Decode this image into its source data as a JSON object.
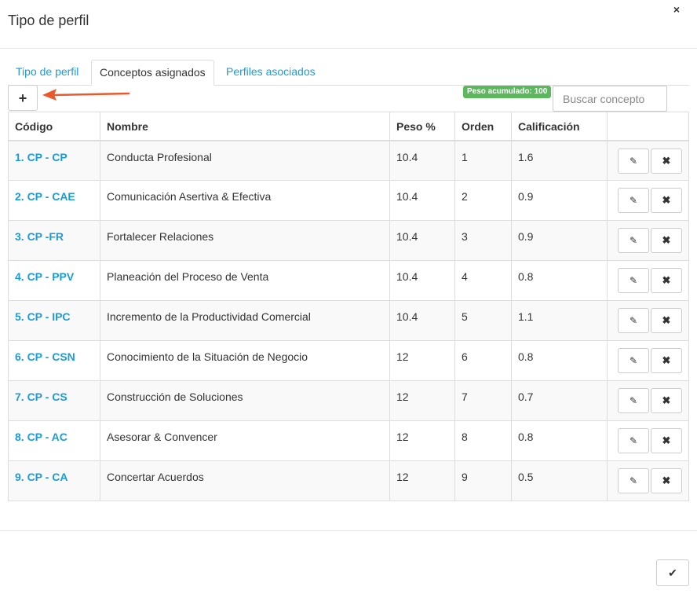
{
  "modal": {
    "title": "Tipo de perfil",
    "close_icon": "×",
    "ok_icon": "✔"
  },
  "tabs": [
    {
      "label": "Tipo de perfil",
      "active": false
    },
    {
      "label": "Conceptos asignados",
      "active": true
    },
    {
      "label": "Perfiles asociados",
      "active": false
    }
  ],
  "toolbar": {
    "add_label": "+",
    "badge": "Peso acumulado: 100",
    "search_placeholder": "Buscar concepto"
  },
  "table": {
    "headers": [
      "Código",
      "Nombre",
      "Peso %",
      "Orden",
      "Calificación",
      ""
    ],
    "rows": [
      {
        "code": "1. CP - CP",
        "name": "Conducta Profesional",
        "weight": "10.4",
        "order": "1",
        "score": "1.6"
      },
      {
        "code": "2. CP - CAE",
        "name": "Comunicación Asertiva & Efectiva",
        "weight": "10.4",
        "order": "2",
        "score": "0.9"
      },
      {
        "code": "3. CP -FR",
        "name": "Fortalecer Relaciones",
        "weight": "10.4",
        "order": "3",
        "score": "0.9"
      },
      {
        "code": "4. CP - PPV",
        "name": "Planeación del Proceso de Venta",
        "weight": "10.4",
        "order": "4",
        "score": "0.8"
      },
      {
        "code": "5. CP - IPC",
        "name": "Incremento de la Productividad Comercial",
        "weight": "10.4",
        "order": "5",
        "score": "1.1"
      },
      {
        "code": "6. CP - CSN",
        "name": "Conocimiento de la Situación de Negocio",
        "weight": "12",
        "order": "6",
        "score": "0.8"
      },
      {
        "code": "7. CP - CS",
        "name": "Construcción de Soluciones",
        "weight": "12",
        "order": "7",
        "score": "0.7"
      },
      {
        "code": "8. CP - AC",
        "name": "Asesorar & Convencer",
        "weight": "12",
        "order": "8",
        "score": "0.8"
      },
      {
        "code": "9. CP - CA",
        "name": "Concertar Acuerdos",
        "weight": "12",
        "order": "9",
        "score": "0.5"
      }
    ],
    "edit_icon": "✎",
    "delete_icon": "✖"
  },
  "colors": {
    "link": "#1a9cd8",
    "badge": "#5cb85c",
    "arrow": "#e8592c"
  }
}
